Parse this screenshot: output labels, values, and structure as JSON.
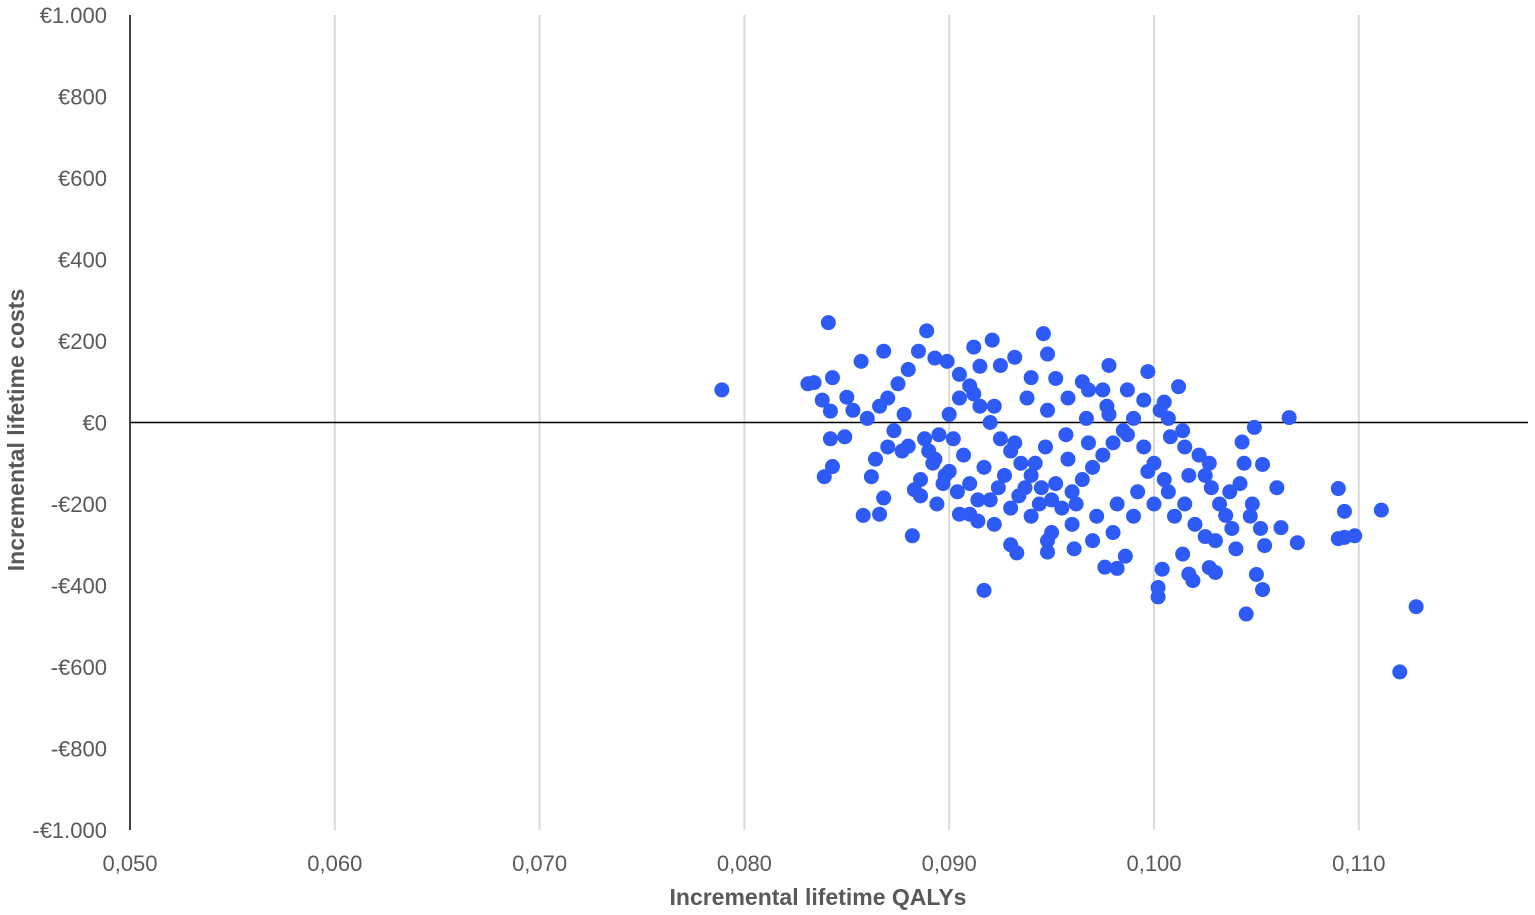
{
  "chart_data": {
    "type": "scatter",
    "xlabel": "Incremental  lifetime QALYs",
    "ylabel": "Incremental lifetime costs",
    "xlim": [
      0.05,
      0.118
    ],
    "ylim": [
      -1000,
      1000
    ],
    "x_ticks": [
      0.05,
      0.06,
      0.07,
      0.08,
      0.09,
      0.1,
      0.11
    ],
    "x_tick_labels": [
      "0,050",
      "0,060",
      "0,070",
      "0,080",
      "0,090",
      "0,100",
      "0,110"
    ],
    "y_ticks": [
      1000,
      800,
      600,
      400,
      200,
      0,
      -200,
      -400,
      -600,
      -800,
      -1000
    ],
    "y_tick_labels": [
      "€1.000",
      "€800",
      "€600",
      "€400",
      "€200",
      "€0",
      "-€200",
      "-€400",
      "-€600",
      "-€800",
      "-€1.000"
    ],
    "grid": "vertical",
    "zero_line": true,
    "legend": "none",
    "marker_color": "#2e5bf5",
    "series": [
      {
        "points": [
          [
            0.0789,
            80
          ],
          [
            0.0841,
            245
          ],
          [
            0.0889,
            225
          ],
          [
            0.0946,
            218
          ],
          [
            0.0921,
            202
          ],
          [
            0.0948,
            168
          ],
          [
            0.0912,
            185
          ],
          [
            0.0899,
            150
          ],
          [
            0.0868,
            175
          ],
          [
            0.0857,
            150
          ],
          [
            0.0831,
            95
          ],
          [
            0.0843,
            110
          ],
          [
            0.0978,
            140
          ],
          [
            0.0997,
            125
          ],
          [
            0.1012,
            88
          ],
          [
            0.0834,
            98
          ],
          [
            0.0838,
            55
          ],
          [
            0.0842,
            28
          ],
          [
            0.085,
            62
          ],
          [
            0.0853,
            30
          ],
          [
            0.0849,
            -35
          ],
          [
            0.0842,
            -40
          ],
          [
            0.0843,
            -108
          ],
          [
            0.0839,
            -133
          ],
          [
            0.0858,
            -228
          ],
          [
            0.0866,
            -225
          ],
          [
            0.0868,
            -185
          ],
          [
            0.0862,
            -133
          ],
          [
            0.0882,
            -278
          ],
          [
            0.0917,
            -412
          ],
          [
            0.093,
            -300
          ],
          [
            0.0933,
            -320
          ],
          [
            0.0922,
            -250
          ],
          [
            0.0948,
            -290
          ],
          [
            0.0948,
            -318
          ],
          [
            0.0961,
            -310
          ],
          [
            0.0976,
            -355
          ],
          [
            0.0982,
            -358
          ],
          [
            0.0986,
            -328
          ],
          [
            0.1002,
            -405
          ],
          [
            0.1002,
            -428
          ],
          [
            0.1004,
            -360
          ],
          [
            0.1014,
            -323
          ],
          [
            0.1017,
            -372
          ],
          [
            0.1019,
            -388
          ],
          [
            0.1027,
            -356
          ],
          [
            0.103,
            -368
          ],
          [
            0.1045,
            -470
          ],
          [
            0.105,
            -373
          ],
          [
            0.1053,
            -410
          ],
          [
            0.1054,
            -302
          ],
          [
            0.1049,
            -12
          ],
          [
            0.1066,
            12
          ],
          [
            0.1043,
            -48
          ],
          [
            0.1044,
            -100
          ],
          [
            0.1053,
            -103
          ],
          [
            0.106,
            -160
          ],
          [
            0.1062,
            -258
          ],
          [
            0.107,
            -295
          ],
          [
            0.109,
            -285
          ],
          [
            0.1093,
            -282
          ],
          [
            0.1098,
            -278
          ],
          [
            0.109,
            -162
          ],
          [
            0.1093,
            -218
          ],
          [
            0.1111,
            -215
          ],
          [
            0.1128,
            -452
          ],
          [
            0.112,
            -612
          ],
          [
            0.1014,
            -20
          ],
          [
            0.1003,
            30
          ],
          [
            0.1007,
            10
          ],
          [
            0.0877,
            -70
          ],
          [
            0.0883,
            -165
          ],
          [
            0.0886,
            -180
          ],
          [
            0.0905,
            -225
          ],
          [
            0.091,
            -225
          ],
          [
            0.0914,
            -242
          ],
          [
            0.0898,
            -130
          ],
          [
            0.0893,
            -90
          ],
          [
            0.088,
            -58
          ],
          [
            0.0873,
            -20
          ],
          [
            0.087,
            60
          ],
          [
            0.0875,
            95
          ],
          [
            0.088,
            130
          ],
          [
            0.0885,
            175
          ],
          [
            0.0893,
            158
          ],
          [
            0.0905,
            118
          ],
          [
            0.0915,
            138
          ],
          [
            0.0925,
            140
          ],
          [
            0.0932,
            160
          ],
          [
            0.094,
            110
          ],
          [
            0.0952,
            108
          ],
          [
            0.0965,
            100
          ],
          [
            0.0975,
            80
          ],
          [
            0.0987,
            80
          ],
          [
            0.0995,
            55
          ],
          [
            0.1005,
            50
          ],
          [
            0.1008,
            -35
          ],
          [
            0.1015,
            -60
          ],
          [
            0.1022,
            -80
          ],
          [
            0.1025,
            -130
          ],
          [
            0.1028,
            -160
          ],
          [
            0.1032,
            -200
          ],
          [
            0.1035,
            -228
          ],
          [
            0.1038,
            -260
          ],
          [
            0.103,
            -290
          ],
          [
            0.102,
            -250
          ],
          [
            0.101,
            -230
          ],
          [
            0.1,
            -200
          ],
          [
            0.099,
            -230
          ],
          [
            0.098,
            -270
          ],
          [
            0.097,
            -290
          ],
          [
            0.096,
            -250
          ],
          [
            0.095,
            -270
          ],
          [
            0.094,
            -230
          ],
          [
            0.093,
            -210
          ],
          [
            0.092,
            -190
          ],
          [
            0.091,
            -150
          ],
          [
            0.09,
            -120
          ],
          [
            0.089,
            -70
          ],
          [
            0.0895,
            -30
          ],
          [
            0.09,
            20
          ],
          [
            0.0905,
            60
          ],
          [
            0.091,
            90
          ],
          [
            0.0915,
            40
          ],
          [
            0.092,
            0
          ],
          [
            0.0925,
            -40
          ],
          [
            0.093,
            -70
          ],
          [
            0.0935,
            -100
          ],
          [
            0.094,
            -130
          ],
          [
            0.0945,
            -160
          ],
          [
            0.095,
            -190
          ],
          [
            0.0955,
            -210
          ],
          [
            0.096,
            -170
          ],
          [
            0.0965,
            -140
          ],
          [
            0.097,
            -110
          ],
          [
            0.0975,
            -80
          ],
          [
            0.098,
            -50
          ],
          [
            0.0985,
            -20
          ],
          [
            0.099,
            10
          ],
          [
            0.0995,
            -60
          ],
          [
            0.1,
            -100
          ],
          [
            0.1005,
            -140
          ],
          [
            0.0992,
            -170
          ],
          [
            0.0982,
            -200
          ],
          [
            0.0972,
            -230
          ],
          [
            0.0962,
            -200
          ],
          [
            0.0952,
            -150
          ],
          [
            0.0942,
            -100
          ],
          [
            0.0932,
            -50
          ],
          [
            0.0922,
            40
          ],
          [
            0.0912,
            70
          ],
          [
            0.0902,
            -40
          ],
          [
            0.0892,
            -100
          ],
          [
            0.0897,
            -150
          ],
          [
            0.0907,
            -80
          ],
          [
            0.0917,
            -110
          ],
          [
            0.0927,
            -130
          ],
          [
            0.0937,
            -160
          ],
          [
            0.0947,
            -60
          ],
          [
            0.0957,
            -30
          ],
          [
            0.0967,
            10
          ],
          [
            0.0977,
            40
          ],
          [
            0.0987,
            -30
          ],
          [
            0.0997,
            -120
          ],
          [
            0.1007,
            -170
          ],
          [
            0.1017,
            -130
          ],
          [
            0.1027,
            -100
          ],
          [
            0.1037,
            -170
          ],
          [
            0.1042,
            -150
          ],
          [
            0.1047,
            -230
          ],
          [
            0.1052,
            -260
          ],
          [
            0.1048,
            -200
          ],
          [
            0.104,
            -310
          ],
          [
            0.1025,
            -280
          ],
          [
            0.1015,
            -200
          ],
          [
            0.0938,
            60
          ],
          [
            0.0948,
            30
          ],
          [
            0.0958,
            60
          ],
          [
            0.0968,
            80
          ],
          [
            0.0978,
            20
          ],
          [
            0.0958,
            -90
          ],
          [
            0.0968,
            -50
          ],
          [
            0.0944,
            -200
          ],
          [
            0.0934,
            -180
          ],
          [
            0.0924,
            -160
          ],
          [
            0.0914,
            -190
          ],
          [
            0.0904,
            -170
          ],
          [
            0.0894,
            -200
          ],
          [
            0.0886,
            -140
          ],
          [
            0.0888,
            -40
          ],
          [
            0.0878,
            20
          ],
          [
            0.087,
            -60
          ],
          [
            0.0864,
            -90
          ],
          [
            0.086,
            10
          ],
          [
            0.0866,
            40
          ]
        ]
      }
    ]
  }
}
